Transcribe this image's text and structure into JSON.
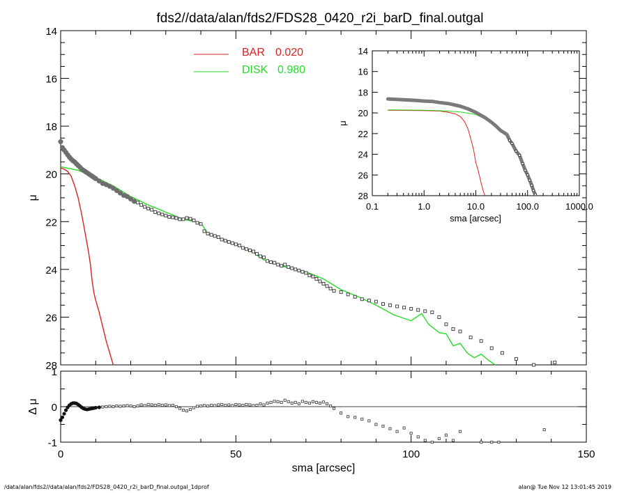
{
  "chart_data": {
    "title": "fds2//data/alan/fds2/FDS28_0420_r2i_barD_final.outgal",
    "main": {
      "type": "line",
      "xlabel": "sma [arcsec]",
      "ylabel": "μ",
      "xlim": [
        0,
        150
      ],
      "ylim": [
        28,
        14
      ],
      "xticks": [
        0,
        50,
        100,
        150
      ],
      "xtick_labels": [
        "0",
        "50",
        "100",
        "150"
      ],
      "yticks": [
        14,
        16,
        18,
        20,
        22,
        24,
        26,
        28
      ],
      "ytick_labels": [
        "14",
        "16",
        "18",
        "20",
        "22",
        "24",
        "26",
        "28"
      ],
      "legend": [
        {
          "label": "BAR",
          "value": "0.020",
          "color": "#dd2020"
        },
        {
          "label": "DISK",
          "value": "0.980",
          "color": "#22dd22"
        }
      ],
      "series": [
        {
          "name": "BAR",
          "color": "#dd2020",
          "x": [
            0,
            1,
            2,
            3,
            4,
            5,
            6,
            7,
            8,
            8.5,
            9,
            9.5,
            10,
            11,
            12,
            13,
            14,
            15
          ],
          "y": [
            19.75,
            19.8,
            19.9,
            20.1,
            20.5,
            21.0,
            21.7,
            22.5,
            23.3,
            23.8,
            24.5,
            25.0,
            25.3,
            25.8,
            26.4,
            27.0,
            27.5,
            28.0
          ]
        },
        {
          "name": "DISK",
          "color": "#22dd22",
          "x": [
            0,
            5,
            10,
            15,
            20,
            25,
            30,
            35,
            40,
            42,
            45,
            50,
            55,
            58,
            60,
            65,
            70,
            75,
            80,
            85,
            90,
            95,
            100,
            103,
            105,
            108,
            110,
            112,
            114,
            116,
            118,
            120,
            122,
            124
          ],
          "y": [
            19.7,
            19.85,
            20.15,
            20.5,
            20.95,
            21.3,
            21.6,
            21.9,
            22.05,
            22.5,
            22.65,
            22.95,
            23.3,
            23.6,
            23.7,
            23.95,
            24.1,
            24.4,
            24.85,
            25.15,
            25.5,
            25.9,
            26.15,
            25.85,
            26.3,
            26.65,
            26.7,
            27.2,
            27.1,
            27.5,
            27.7,
            27.55,
            27.8,
            28.0
          ]
        },
        {
          "name": "data",
          "x": [
            0,
            0.5,
            1,
            1.5,
            2,
            2.5,
            3,
            3.5,
            4,
            4.5,
            5,
            5.5,
            6,
            6.5,
            7,
            7.5,
            8,
            8.5,
            9,
            9.5,
            10,
            11,
            12,
            13,
            14,
            15,
            16,
            17,
            18,
            19,
            20,
            21,
            22,
            23,
            24,
            25,
            26,
            27,
            28,
            29,
            30,
            31,
            32,
            33,
            34,
            35,
            36,
            37,
            38,
            39,
            40,
            41,
            42,
            43,
            44,
            45,
            46,
            47,
            48,
            49,
            50,
            51,
            52,
            53,
            54,
            55,
            56,
            57,
            58,
            59,
            60,
            61,
            62,
            63,
            64,
            65,
            66,
            67,
            68,
            69,
            70,
            71,
            72,
            73,
            74,
            75,
            76,
            77,
            78,
            80,
            82,
            84,
            86,
            88,
            90,
            92,
            94,
            96,
            98,
            100,
            102,
            104,
            106,
            108,
            110,
            112,
            114,
            117,
            120,
            123,
            126,
            130,
            135,
            141
          ],
          "y": [
            18.65,
            18.9,
            19.0,
            19.1,
            19.2,
            19.3,
            19.38,
            19.45,
            19.5,
            19.58,
            19.65,
            19.72,
            19.8,
            19.85,
            19.9,
            19.95,
            20.0,
            20.05,
            20.1,
            20.15,
            20.2,
            20.3,
            20.4,
            20.45,
            20.52,
            20.6,
            20.7,
            20.8,
            20.9,
            20.95,
            21.05,
            21.15,
            21.2,
            21.3,
            21.38,
            21.45,
            21.5,
            21.6,
            21.65,
            21.7,
            21.75,
            21.8,
            21.82,
            21.85,
            21.9,
            21.9,
            21.85,
            21.88,
            21.95,
            22.05,
            22.1,
            22.4,
            22.5,
            22.55,
            22.6,
            22.65,
            22.75,
            22.8,
            22.85,
            22.9,
            22.95,
            23.0,
            23.1,
            23.15,
            23.2,
            23.25,
            23.35,
            23.45,
            23.5,
            23.65,
            23.7,
            23.72,
            23.8,
            23.85,
            23.8,
            23.9,
            23.95,
            24.0,
            24.05,
            24.1,
            24.15,
            24.25,
            24.3,
            24.4,
            24.5,
            24.6,
            24.7,
            24.8,
            24.9,
            24.95,
            25.05,
            25.15,
            25.25,
            25.3,
            25.35,
            25.45,
            25.5,
            25.55,
            25.6,
            25.65,
            25.7,
            25.75,
            25.8,
            26.0,
            26.3,
            26.5,
            26.6,
            26.85,
            27.0,
            27.3,
            27.5,
            27.75,
            28.0,
            27.9
          ]
        }
      ]
    },
    "inset": {
      "type": "line",
      "xlabel": "sma [arcsec]",
      "ylabel": "μ",
      "xscale": "log",
      "xlim": [
        0.1,
        1000
      ],
      "ylim": [
        28,
        14
      ],
      "xticks": [
        0.1,
        1,
        10,
        100,
        1000
      ],
      "xtick_labels": [
        "0.1",
        "1.0",
        "10.0",
        "100.0",
        "1000.0"
      ],
      "yticks": [
        14,
        16,
        18,
        20,
        22,
        24,
        26,
        28
      ],
      "ytick_labels": [
        "14",
        "16",
        "18",
        "20",
        "22",
        "24",
        "26",
        "28"
      ],
      "series": [
        {
          "name": "BAR",
          "color": "#dd2020",
          "x": [
            0.2,
            0.5,
            1,
            2,
            3,
            4,
            5,
            6,
            7,
            8,
            9,
            10,
            11,
            12,
            13,
            14,
            15
          ],
          "y": [
            19.75,
            19.76,
            19.78,
            19.82,
            19.95,
            20.1,
            20.35,
            20.8,
            21.5,
            22.5,
            23.5,
            24.8,
            25.5,
            26.3,
            27.0,
            27.6,
            28.0
          ]
        },
        {
          "name": "DISK",
          "color": "#22dd22",
          "x": [
            0.2,
            0.5,
            1,
            2,
            5,
            10,
            20
          ],
          "y": [
            19.7,
            19.72,
            19.74,
            19.78,
            19.9,
            20.15,
            20.9
          ]
        },
        {
          "name": "data",
          "x": [
            0.2,
            0.3,
            0.5,
            0.7,
            1,
            1.5,
            2,
            3,
            5,
            7,
            10,
            15,
            20,
            25,
            30,
            35,
            40,
            45,
            50,
            60,
            70,
            80,
            90,
            100,
            110,
            120,
            130,
            141
          ],
          "y": [
            18.65,
            18.7,
            18.75,
            18.8,
            18.85,
            18.9,
            19.0,
            19.1,
            19.35,
            19.6,
            19.95,
            20.45,
            20.9,
            21.3,
            21.7,
            21.9,
            22.1,
            22.65,
            22.95,
            23.7,
            24.1,
            24.9,
            25.55,
            26.0,
            26.5,
            27.0,
            27.5,
            27.9
          ]
        }
      ]
    },
    "residual": {
      "type": "scatter",
      "ylabel": "Δ μ",
      "xlim": [
        0,
        150
      ],
      "ylim": [
        -1,
        1
      ],
      "yticks": [
        -1,
        0,
        1
      ],
      "ytick_labels": [
        "-1",
        "0",
        "1"
      ],
      "x": [
        0,
        0.5,
        1,
        1.5,
        2,
        2.5,
        3,
        3.5,
        4,
        4.5,
        5,
        5.5,
        6,
        6.5,
        7,
        7.5,
        8,
        8.5,
        9,
        9.5,
        10,
        11,
        12,
        13,
        14,
        15,
        16,
        17,
        18,
        19,
        20,
        21,
        22,
        23,
        24,
        25,
        26,
        27,
        28,
        29,
        30,
        31,
        32,
        33,
        34,
        35,
        36,
        37,
        38,
        39,
        40,
        41,
        42,
        43,
        44,
        45,
        46,
        47,
        48,
        49,
        50,
        51,
        52,
        53,
        54,
        55,
        56,
        57,
        58,
        59,
        60,
        61,
        62,
        63,
        64,
        65,
        66,
        67,
        68,
        69,
        70,
        71,
        72,
        73,
        74,
        75,
        76,
        77,
        78,
        80,
        82,
        84,
        86,
        88,
        90,
        92,
        94,
        96,
        98,
        100,
        102,
        104,
        106,
        108,
        110,
        112,
        114,
        120,
        123,
        125,
        138
      ],
      "y": [
        -0.38,
        -0.3,
        -0.2,
        -0.1,
        -0.02,
        0.04,
        0.08,
        0.1,
        0.1,
        0.09,
        0.06,
        0.02,
        -0.02,
        -0.05,
        -0.07,
        -0.08,
        -0.07,
        -0.06,
        -0.05,
        -0.04,
        -0.03,
        -0.02,
        -0.01,
        0.0,
        0.01,
        0.0,
        0.02,
        0.01,
        0.02,
        0.03,
        0.02,
        0.0,
        0.02,
        0.05,
        0.03,
        0.06,
        0.05,
        0.04,
        0.06,
        0.04,
        0.05,
        0.03,
        0.04,
        0.0,
        -0.05,
        -0.1,
        -0.12,
        -0.08,
        -0.03,
        0.01,
        0.02,
        0.03,
        0.02,
        0.04,
        0.03,
        0.05,
        0.06,
        0.04,
        0.05,
        0.03,
        0.06,
        0.05,
        0.04,
        0.06,
        0.05,
        0.03,
        0.04,
        0.08,
        0.05,
        0.1,
        0.12,
        0.15,
        0.14,
        0.12,
        0.18,
        0.14,
        0.1,
        0.12,
        0.08,
        0.15,
        0.12,
        0.1,
        0.14,
        0.12,
        0.1,
        0.13,
        0.08,
        0.02,
        -0.05,
        -0.18,
        -0.28,
        -0.3,
        -0.35,
        -0.4,
        -0.5,
        -0.55,
        -0.62,
        -0.7,
        -0.6,
        -0.75,
        -0.85,
        -0.95,
        -1.0,
        -0.9,
        -0.8,
        -0.95,
        -0.7,
        -1.0,
        -1.0,
        -1.0,
        -0.65
      ]
    },
    "footer_left": "/data/alan/fds2//data/alan/fds2/FDS28_0420_r2i_barD_final.outgal_1dprof",
    "footer_right": "alan@  Tue Nov 12 13:01:45 2019"
  }
}
